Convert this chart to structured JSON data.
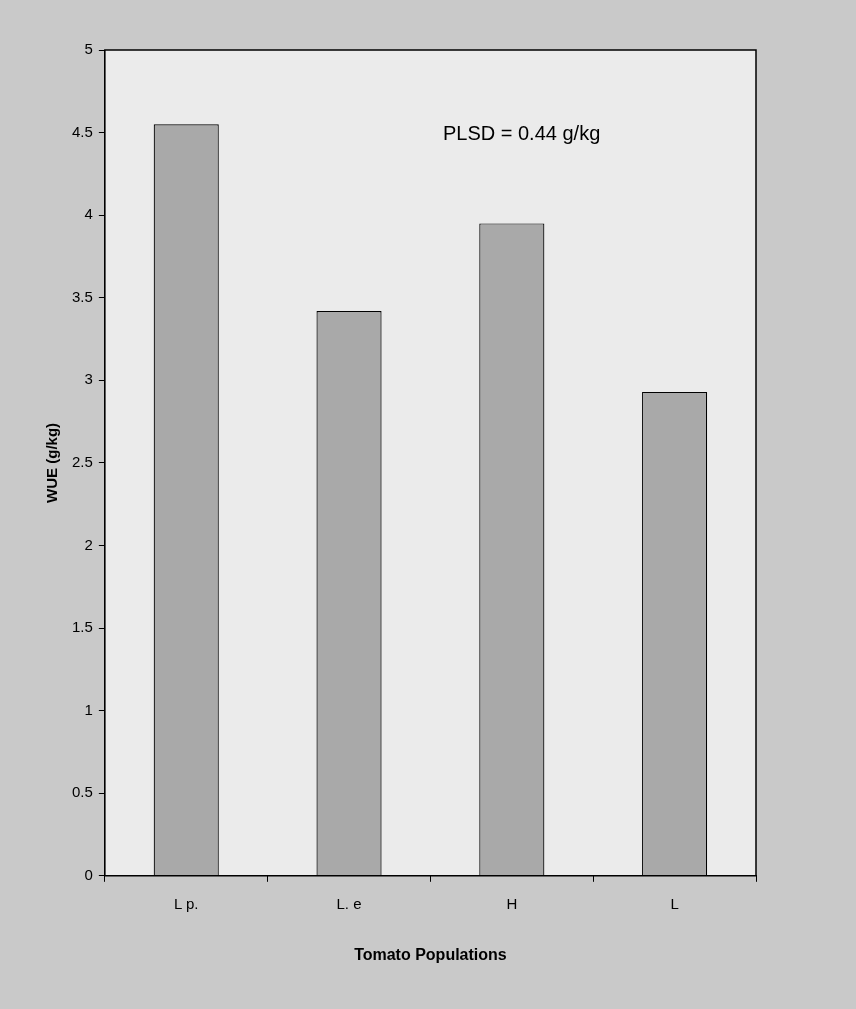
{
  "chart_data": {
    "type": "bar",
    "xlabel": "Tomato Populations",
    "ylabel": "WUE (g/kg)",
    "categories": [
      "L p.",
      "L. e",
      "H",
      "L"
    ],
    "values": [
      4.55,
      3.42,
      3.95,
      2.93
    ],
    "color": "#a9a9a9",
    "ylim": [
      0,
      5
    ],
    "yticks": [
      0,
      0.5,
      1,
      1.5,
      2,
      2.5,
      3,
      3.5,
      4,
      4.5,
      5
    ],
    "grid": false,
    "annotations": [
      "PLSD = 0.44 g/kg"
    ]
  }
}
